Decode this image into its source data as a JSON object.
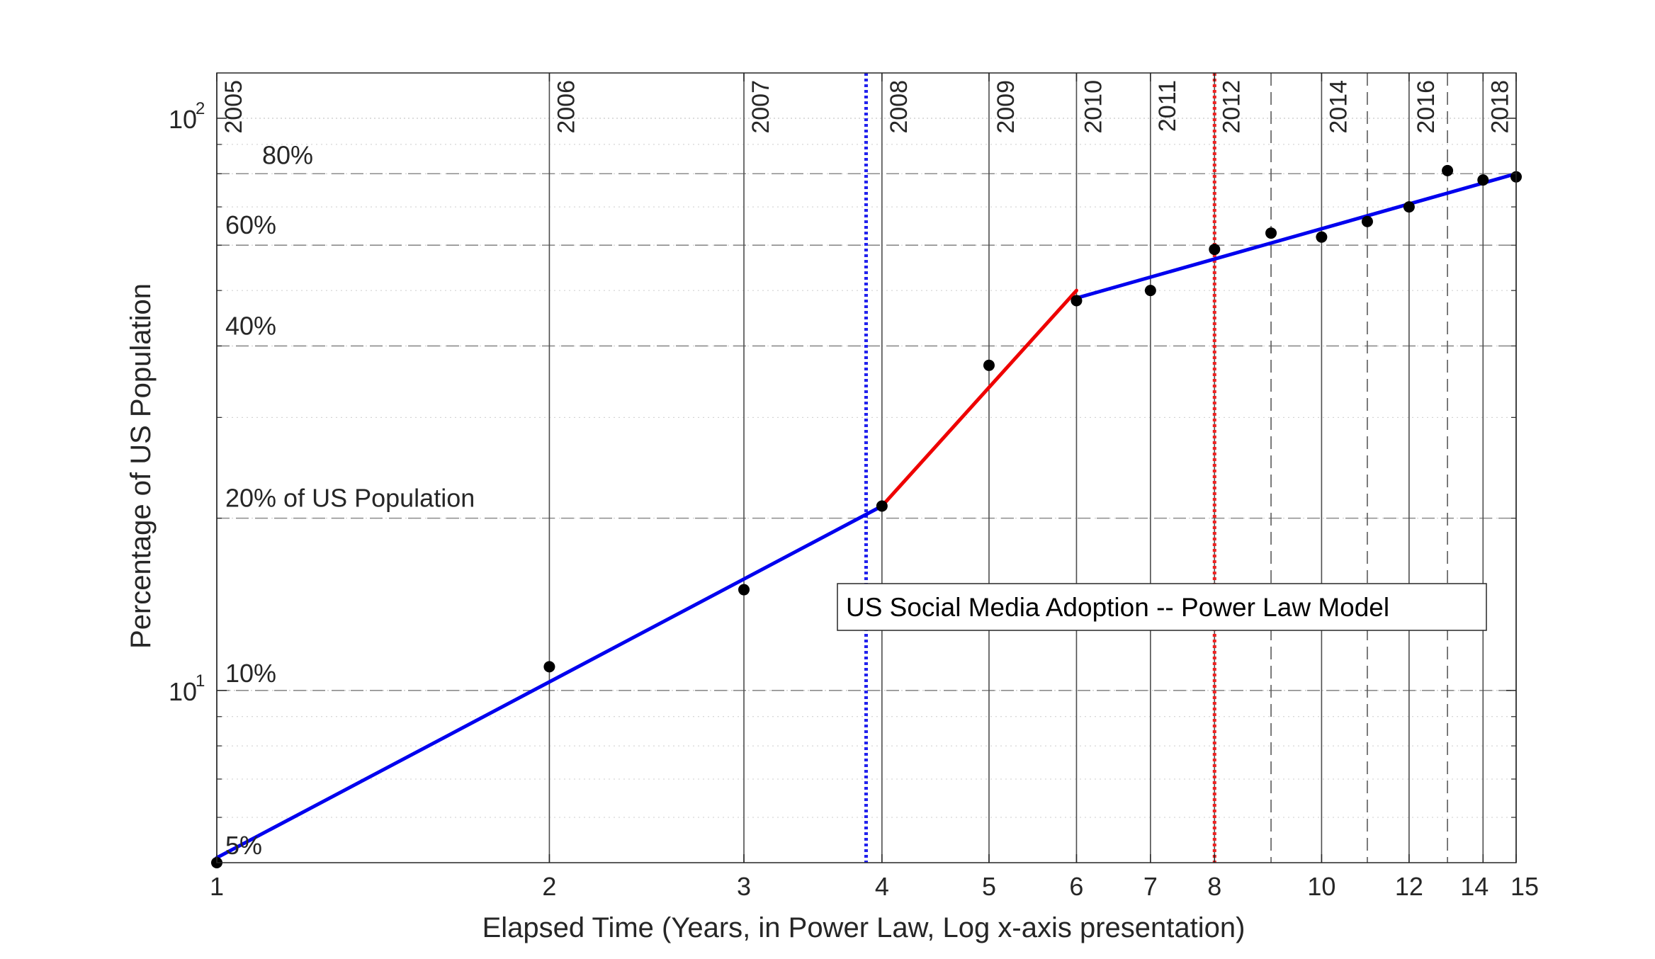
{
  "chart_data": {
    "type": "line",
    "title": "",
    "xlabel": "Elapsed Time (Years, in Power Law, Log x-axis presentation)",
    "ylabel": "Percentage of US Population",
    "xscale": "log",
    "yscale": "log",
    "xlim": [
      1,
      15
    ],
    "ylim": [
      5,
      120
    ],
    "x_ticks": [
      1,
      2,
      3,
      4,
      5,
      6,
      7,
      8,
      10,
      12,
      14,
      15
    ],
    "x_tick_labels": [
      "1",
      "2",
      "3",
      "4",
      "5",
      "6",
      "7",
      "8",
      "10",
      "12",
      "14",
      "15"
    ],
    "y_ticks": [
      10,
      100
    ],
    "y_tick_labels": [
      {
        "base": "10",
        "exp": "1"
      },
      {
        "base": "10",
        "exp": "2"
      }
    ],
    "grid": true,
    "legend_placement": "center-right",
    "year_lines": [
      {
        "x": 1,
        "label": "2005",
        "style": "solid"
      },
      {
        "x": 2,
        "label": "2006",
        "style": "solid"
      },
      {
        "x": 3,
        "label": "2007",
        "style": "solid"
      },
      {
        "x": 4,
        "label": "2008",
        "style": "solid"
      },
      {
        "x": 5,
        "label": "2009",
        "style": "solid"
      },
      {
        "x": 6,
        "label": "2010",
        "style": "solid"
      },
      {
        "x": 7,
        "label": "2011",
        "style": "solid"
      },
      {
        "x": 8,
        "label": "2012",
        "style": "solid"
      },
      {
        "x": 9,
        "label": "",
        "style": "dashed"
      },
      {
        "x": 10,
        "label": "2014",
        "style": "solid"
      },
      {
        "x": 11,
        "label": "",
        "style": "dashed"
      },
      {
        "x": 12,
        "label": "2016",
        "style": "solid"
      },
      {
        "x": 13,
        "label": "",
        "style": "dashed"
      },
      {
        "x": 14,
        "label": "2018",
        "style": "solid"
      },
      {
        "x": 15,
        "label": "",
        "style": "solid"
      }
    ],
    "ref_lines": [
      {
        "y": 5,
        "label": "5%"
      },
      {
        "y": 10,
        "label": "10%"
      },
      {
        "y": 20,
        "label": "20% of US Population"
      },
      {
        "y": 40,
        "label": "40%"
      },
      {
        "y": 60,
        "label": "60%"
      },
      {
        "y": 80,
        "label": "80%"
      }
    ],
    "vertical_markers": [
      {
        "x": 3.87,
        "color": "#2222ee",
        "style": "dotted"
      },
      {
        "x": 8,
        "color": "#ee2222",
        "style": "dotted"
      }
    ],
    "points": {
      "x": [
        1,
        2,
        3,
        4,
        5,
        6,
        7,
        8,
        9,
        10,
        11,
        12,
        13,
        14,
        15
      ],
      "y": [
        5,
        11,
        15,
        21,
        37,
        48,
        50,
        59,
        63,
        62,
        66,
        70,
        81,
        78,
        79
      ]
    },
    "series": [
      {
        "x": [
          1,
          4
        ],
        "y": [
          5.1,
          21
        ],
        "color": "#0000ee"
      },
      {
        "x": [
          4,
          6
        ],
        "y": [
          21,
          50
        ],
        "color": "#ee0000"
      },
      {
        "x": [
          6,
          15
        ],
        "y": [
          48.5,
          80
        ],
        "color": "#0000ee"
      }
    ],
    "legend": {
      "text": "US Social Media Adoption -- Power Law Model"
    }
  }
}
